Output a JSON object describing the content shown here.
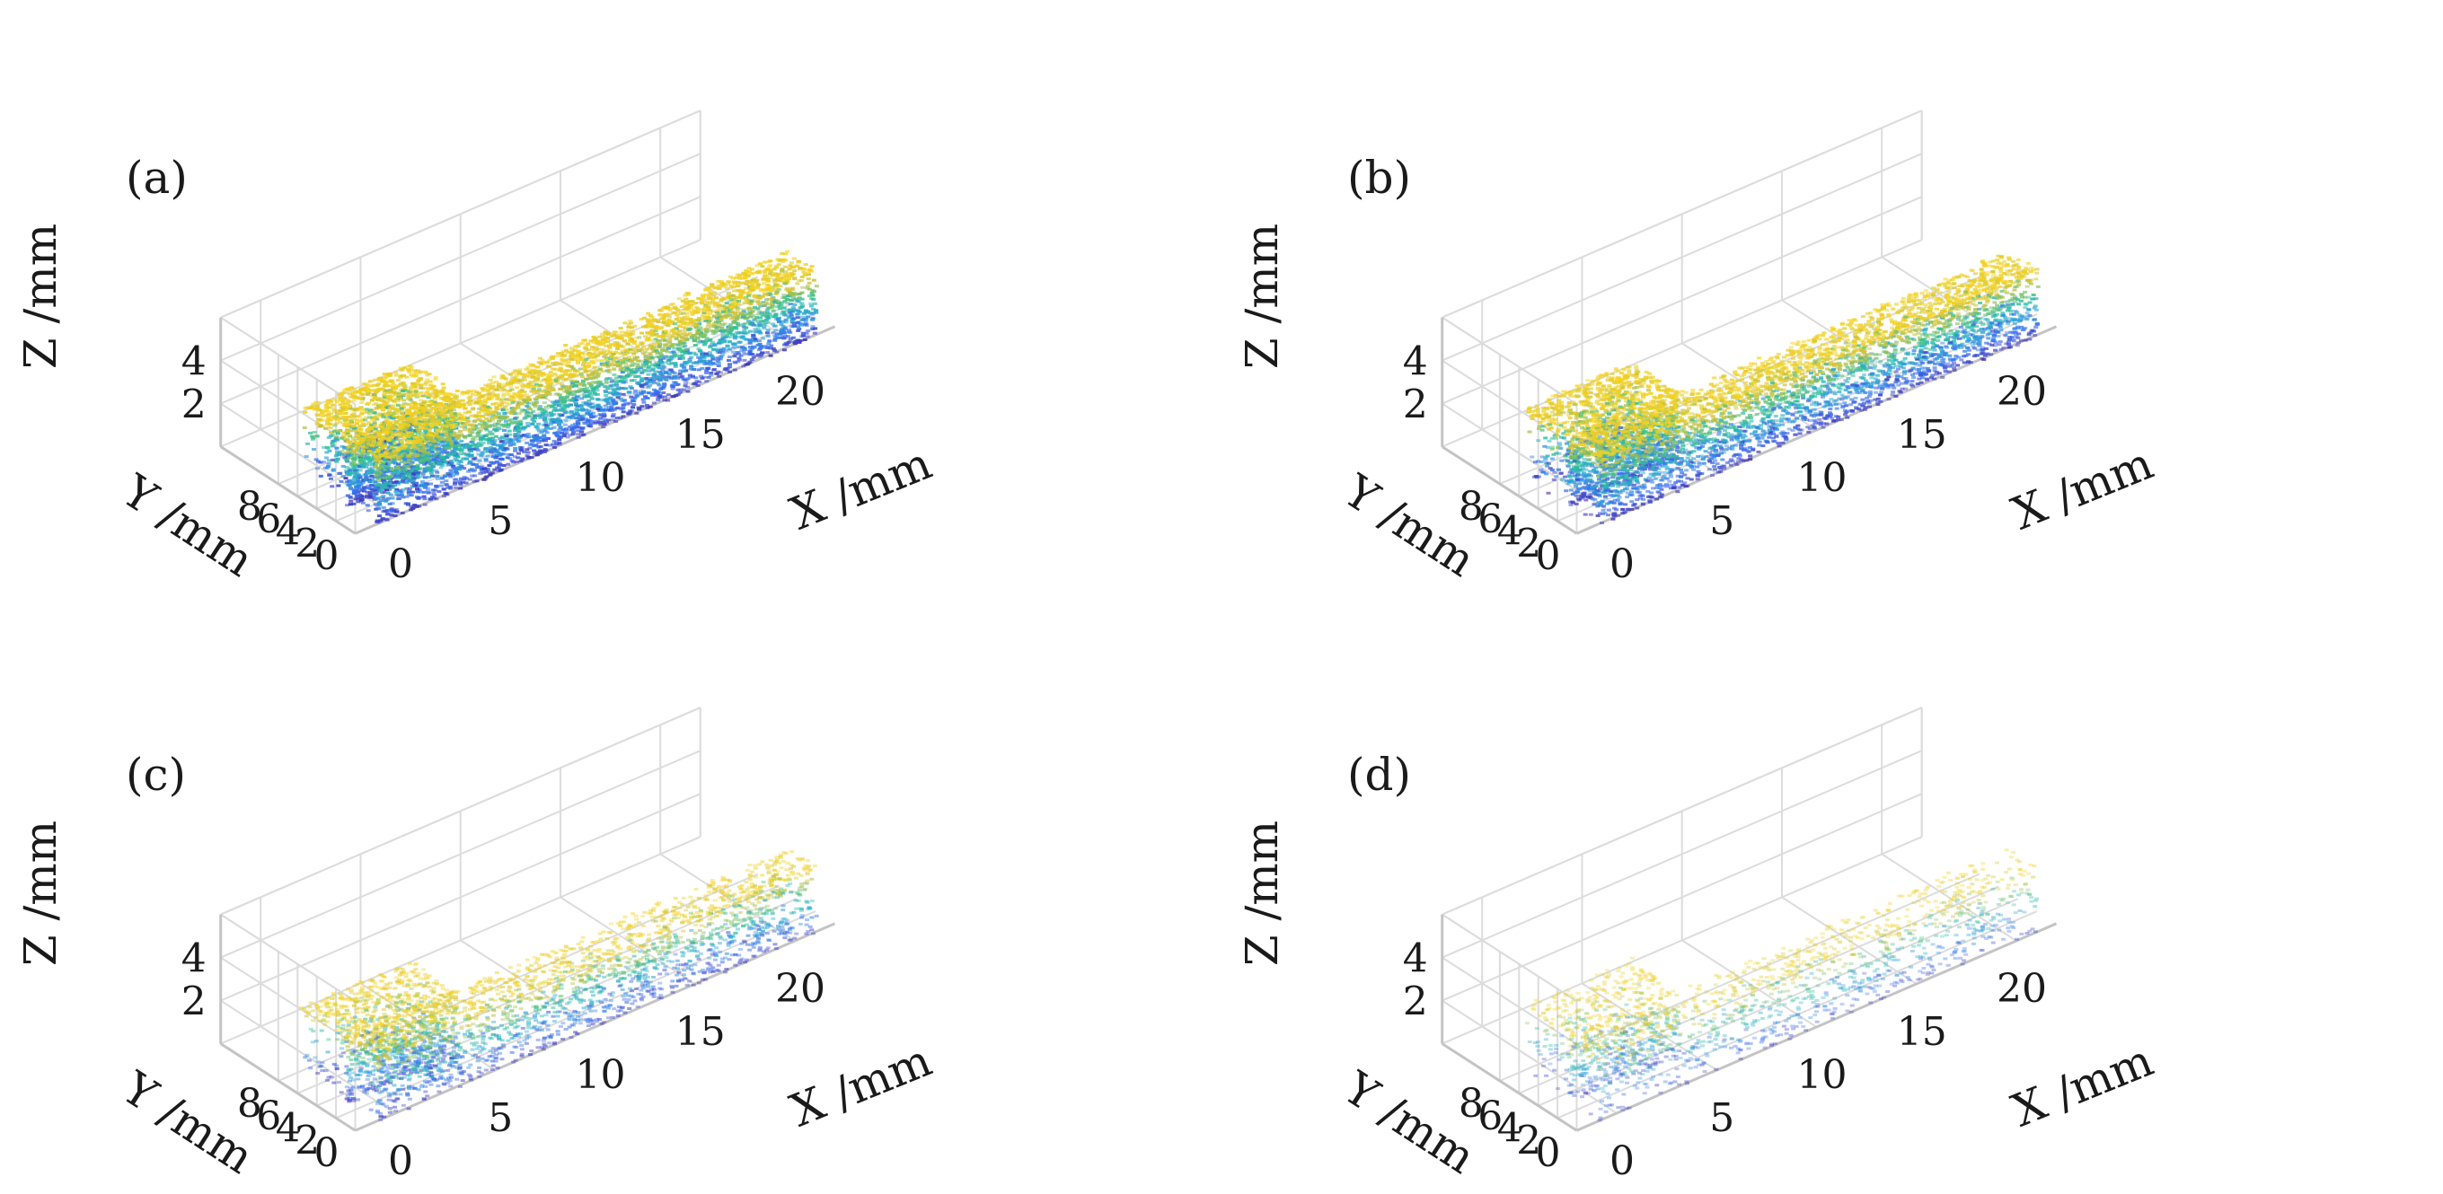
{
  "chart_data": [
    {
      "type": "scatter",
      "panel_label": "(a)",
      "xlabel": "X /mm",
      "ylabel": "Y /mm",
      "zlabel": "Z /mm",
      "xticks": [
        "0",
        "5",
        "10",
        "15",
        "20"
      ],
      "yticks": [
        "0",
        "2",
        "4",
        "6",
        "8"
      ],
      "zticks": [
        "2",
        "4"
      ],
      "xlim": [
        -2,
        22
      ],
      "ylim": [
        0,
        14
      ],
      "zlim": [
        0,
        6
      ],
      "grid": true,
      "colormap": "parula",
      "density": 1.0,
      "objects": [
        {
          "name": "",
          "x": [
            -1,
            21
          ],
          "y": [
            0,
            3
          ],
          "z": [
            0,
            3.2
          ]
        },
        {
          "name": "",
          "x": [
            -1,
            4.5
          ],
          "y": [
            3,
            8
          ],
          "z": [
            0,
            3.2
          ]
        }
      ]
    },
    {
      "type": "scatter",
      "panel_label": "(b)",
      "xlabel": "X /mm",
      "ylabel": "Y /mm",
      "zlabel": "Z /mm",
      "xticks": [
        "0",
        "5",
        "10",
        "15",
        "20"
      ],
      "yticks": [
        "0",
        "2",
        "4",
        "6",
        "8"
      ],
      "zticks": [
        "2",
        "4"
      ],
      "xlim": [
        -2,
        22
      ],
      "ylim": [
        0,
        14
      ],
      "zlim": [
        0,
        6
      ],
      "grid": true,
      "colormap": "parula",
      "density": 0.85,
      "objects": [
        {
          "name": "",
          "x": [
            -1,
            21
          ],
          "y": [
            0,
            3
          ],
          "z": [
            0,
            3.2
          ]
        },
        {
          "name": "",
          "x": [
            -1,
            4.5
          ],
          "y": [
            3,
            8
          ],
          "z": [
            0,
            3.2
          ]
        }
      ]
    },
    {
      "type": "scatter",
      "panel_label": "(c)",
      "xlabel": "X /mm",
      "ylabel": "Y /mm",
      "zlabel": "Z /mm",
      "xticks": [
        "0",
        "5",
        "10",
        "15",
        "20"
      ],
      "yticks": [
        "0",
        "2",
        "4",
        "6",
        "8"
      ],
      "zticks": [
        "2",
        "4"
      ],
      "xlim": [
        -2,
        22
      ],
      "ylim": [
        0,
        14
      ],
      "zlim": [
        0,
        6
      ],
      "grid": true,
      "colormap": "parula",
      "density": 0.45,
      "objects": [
        {
          "name": "",
          "x": [
            -1,
            21
          ],
          "y": [
            0,
            3
          ],
          "z": [
            0,
            3.2
          ]
        },
        {
          "name": "",
          "x": [
            -1,
            4.5
          ],
          "y": [
            3,
            8
          ],
          "z": [
            0,
            3.2
          ]
        }
      ]
    },
    {
      "type": "scatter",
      "panel_label": "(d)",
      "xlabel": "X /mm",
      "ylabel": "Y /mm",
      "zlabel": "Z /mm",
      "xticks": [
        "0",
        "5",
        "10",
        "15",
        "20"
      ],
      "yticks": [
        "0",
        "2",
        "4",
        "6",
        "8"
      ],
      "zticks": [
        "2",
        "4"
      ],
      "xlim": [
        -2,
        22
      ],
      "ylim": [
        0,
        14
      ],
      "zlim": [
        0,
        6
      ],
      "grid": true,
      "colormap": "parula",
      "density": 0.22,
      "objects": [
        {
          "name": "",
          "x": [
            -1,
            21
          ],
          "y": [
            0,
            3
          ],
          "z": [
            0,
            3.2
          ]
        },
        {
          "name": "",
          "x": [
            -1,
            4.5
          ],
          "y": [
            3,
            8
          ],
          "z": [
            0,
            3.2
          ]
        }
      ]
    }
  ]
}
